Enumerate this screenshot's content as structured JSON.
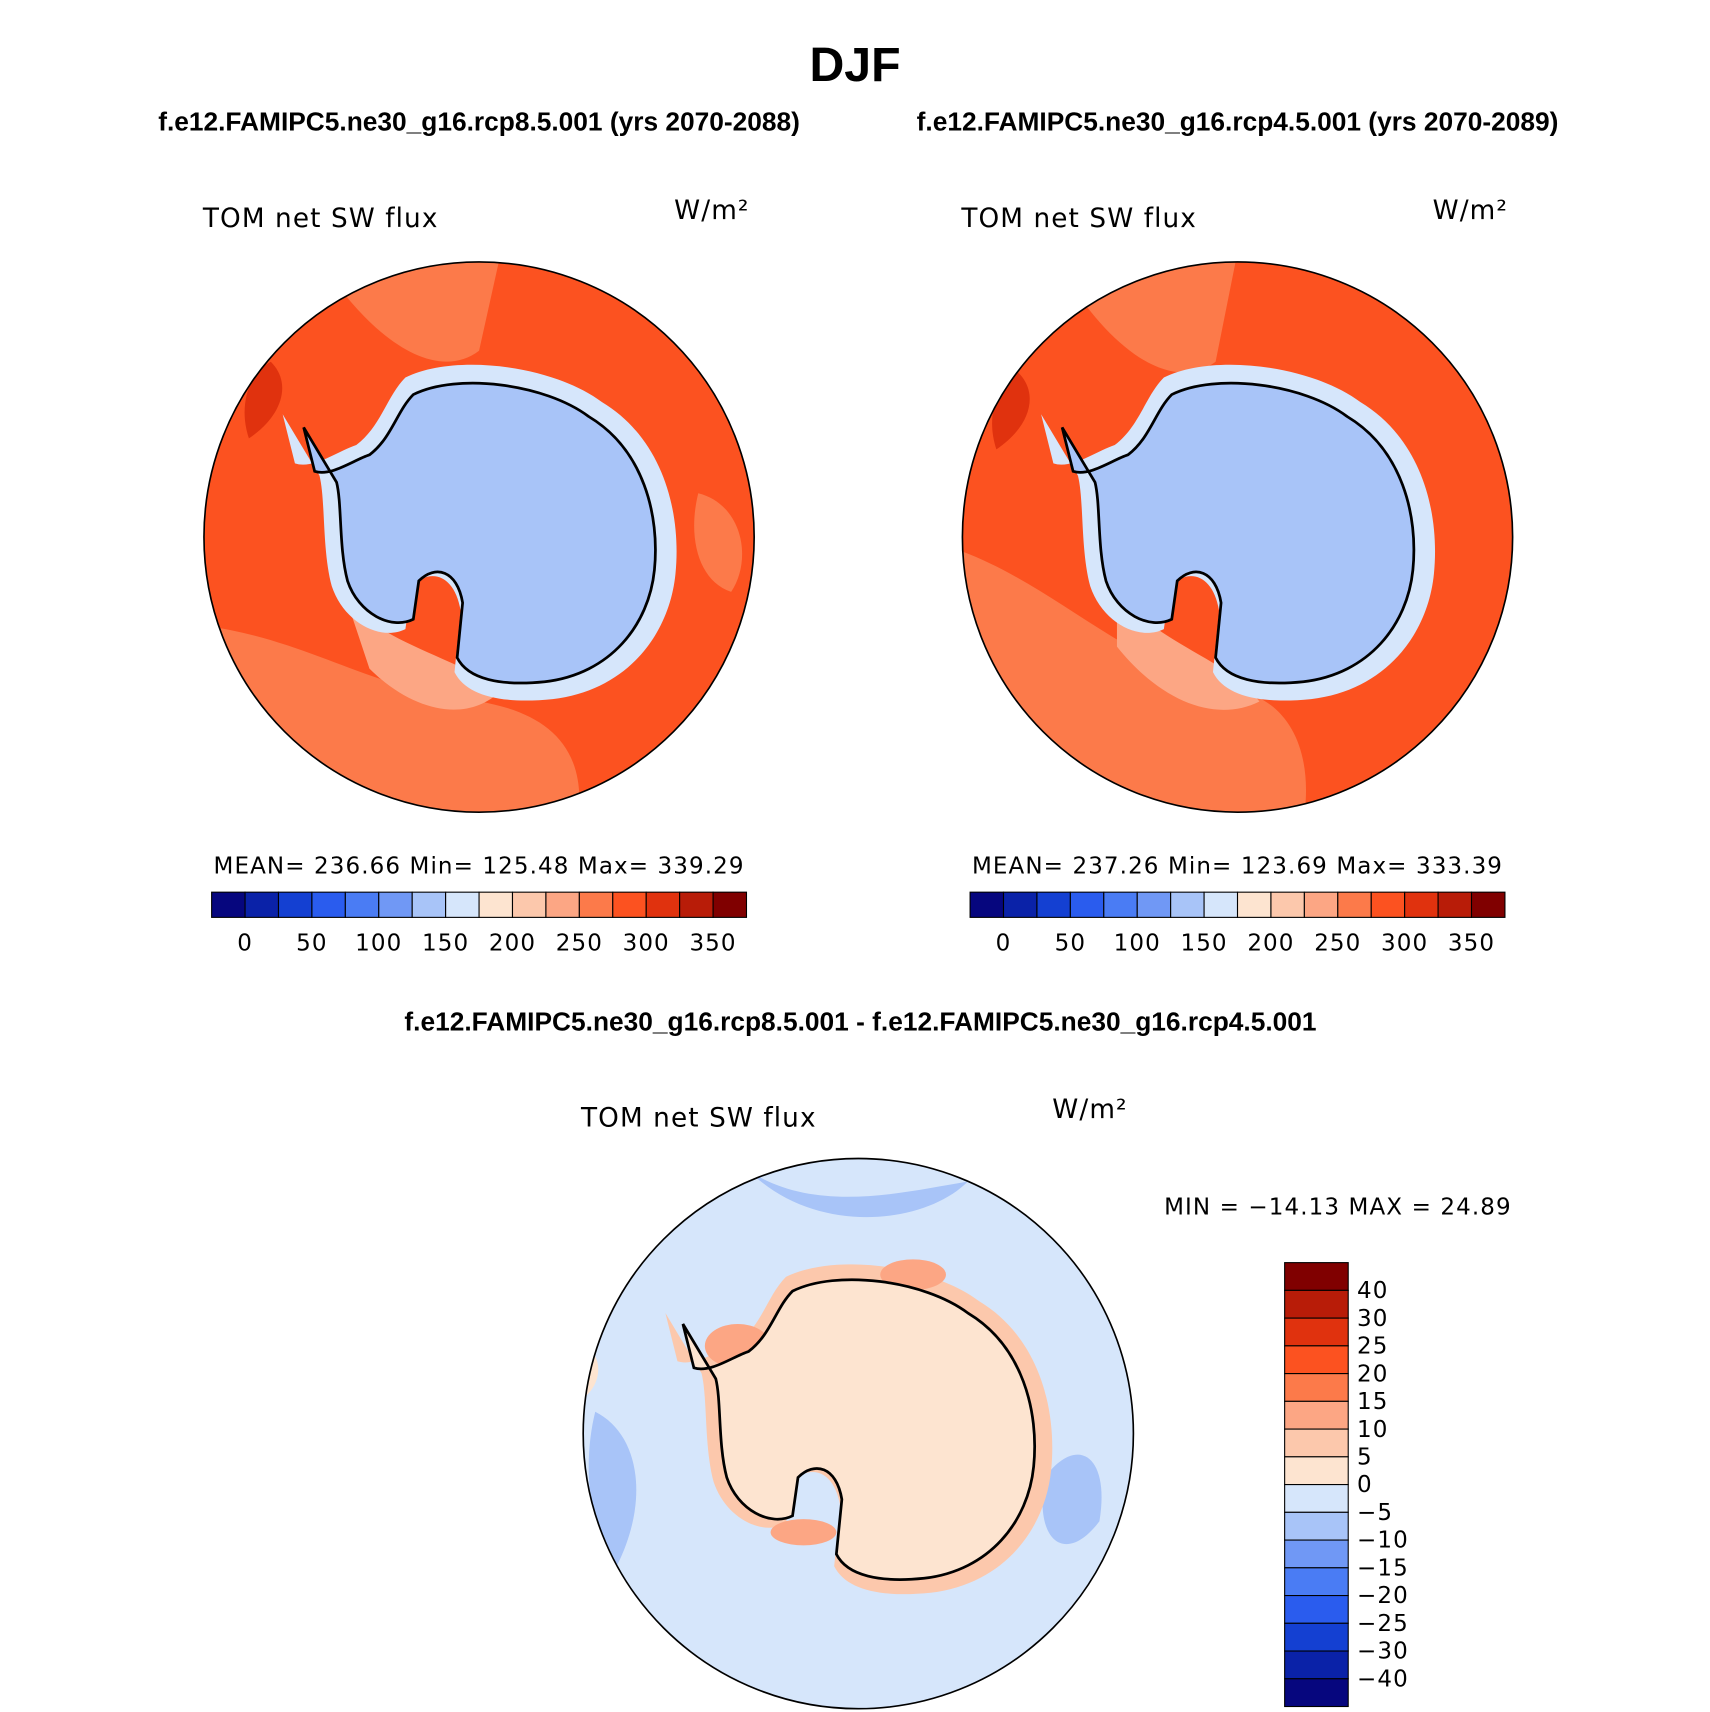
{
  "title": "DJF",
  "panels": [
    {
      "subtitle": "f.e12.FAMIPC5.ne30_g16.rcp8.5.001 (yrs 2070-2088)",
      "variable": "TOM net SW flux",
      "units": "W/m²",
      "stats": [
        {
          "label": "MEAN=",
          "value": 236.66
        },
        {
          "label": "Min=",
          "value": 125.48
        },
        {
          "label": "Max=",
          "value": 339.29
        }
      ]
    },
    {
      "subtitle": "f.e12.FAMIPC5.ne30_g16.rcp4.5.001 (yrs 2070-2089)",
      "variable": "TOM net SW flux",
      "units": "W/m²",
      "stats": [
        {
          "label": "MEAN=",
          "value": 237.26
        },
        {
          "label": "Min=",
          "value": 123.69
        },
        {
          "label": "Max=",
          "value": 333.39
        }
      ]
    }
  ],
  "colorbar": {
    "labels": [
      0,
      50,
      100,
      150,
      200,
      250,
      300,
      350
    ],
    "colors": [
      "#06067e",
      "#0a22a8",
      "#1440d2",
      "#2a5cee",
      "#4a7cf4",
      "#7098f5",
      "#a8c4f8",
      "#d6e6fb",
      "#fde4d0",
      "#fcc8ac",
      "#fca684",
      "#fc7a4a",
      "#fc5220",
      "#e0320e",
      "#b81c08",
      "#800000"
    ]
  },
  "difference": {
    "title": "f.e12.FAMIPC5.ne30_g16.rcp8.5.001 - f.e12.FAMIPC5.ne30_g16.rcp4.5.001",
    "variable": "TOM net SW flux",
    "units": "W/m²",
    "stats": [
      {
        "label": "MIN =",
        "value": {
          "value": -14.13,
          "label": "−14.13"
        }
      },
      {
        "label": "MAX =",
        "value": 24.89
      }
    ],
    "colorbar": {
      "labels": [
        40,
        30,
        25,
        20,
        15,
        10,
        5,
        0,
        {
          "value": -5,
          "label": "−5"
        },
        {
          "value": -10,
          "label": "−10"
        },
        {
          "value": -15,
          "label": "−15"
        },
        {
          "value": -20,
          "label": "−20"
        },
        {
          "value": -25,
          "label": "−25"
        },
        {
          "value": -30,
          "label": "−30"
        },
        {
          "value": -40,
          "label": "−40"
        }
      ],
      "colors": [
        "#800000",
        "#b81c08",
        "#e0320e",
        "#fc5220",
        "#fc7a4a",
        "#fca684",
        "#fcc8ac",
        "#fde4d0",
        "#d6e6fb",
        "#a8c4f8",
        "#7098f5",
        "#4a7cf4",
        "#2a5cee",
        "#1440d2",
        "#0a22a8",
        "#06067e"
      ]
    }
  }
}
